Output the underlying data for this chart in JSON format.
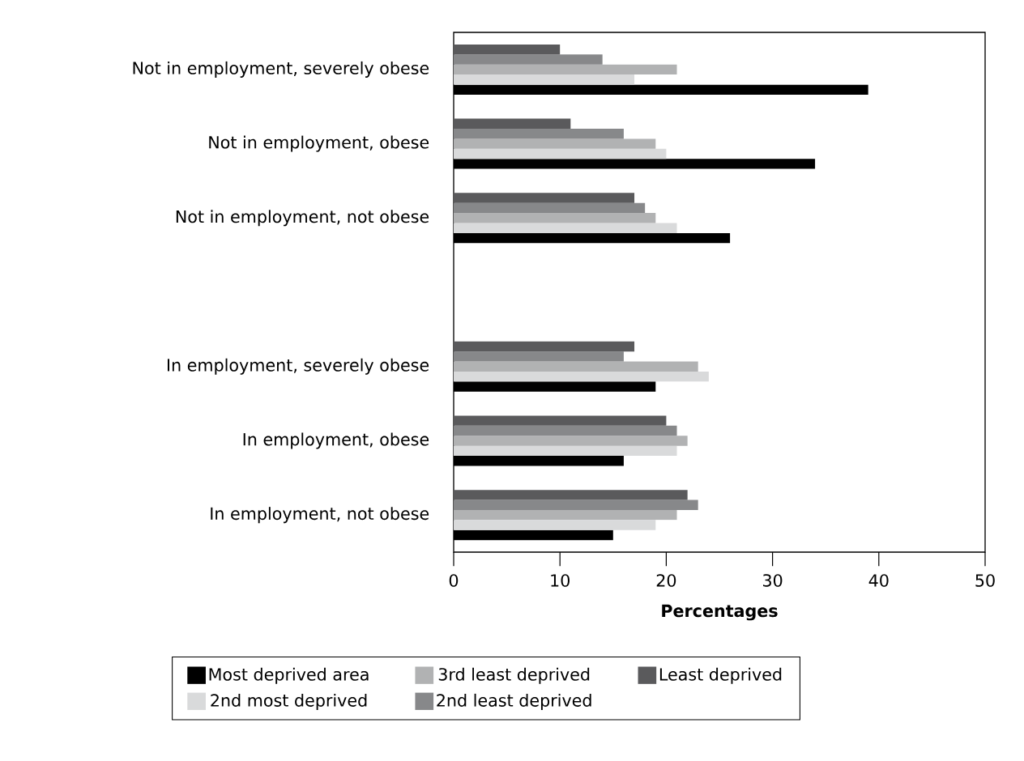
{
  "chart_data": {
    "type": "bar",
    "orientation": "horizontal",
    "xlabel": "Percentages",
    "categories": [
      "Not in employment, severely obese",
      "Not in employment, obese",
      "Not in employment, not obese",
      null,
      "In employment, severely obese",
      "In employment, obese",
      "In employment, not obese"
    ],
    "series": [
      {
        "name": "Most deprived area",
        "color": "#000000",
        "values": [
          39,
          34,
          26,
          null,
          19,
          16,
          15
        ]
      },
      {
        "name": "2nd most deprived",
        "color": "#d9dadb",
        "values": [
          17,
          20,
          21,
          null,
          24,
          21,
          19
        ]
      },
      {
        "name": "3rd least deprived",
        "color": "#b1b2b3",
        "values": [
          21,
          19,
          19,
          null,
          23,
          22,
          21
        ]
      },
      {
        "name": "2nd least deprived",
        "color": "#87888a",
        "values": [
          14,
          16,
          18,
          null,
          16,
          21,
          23
        ]
      },
      {
        "name": "Least deprived",
        "color": "#5a5a5c",
        "values": [
          10,
          11,
          17,
          null,
          17,
          20,
          22
        ]
      }
    ],
    "xlim": [
      0,
      50
    ],
    "xticks": [
      0,
      10,
      20,
      30,
      40,
      50
    ],
    "legend": "bottom"
  }
}
